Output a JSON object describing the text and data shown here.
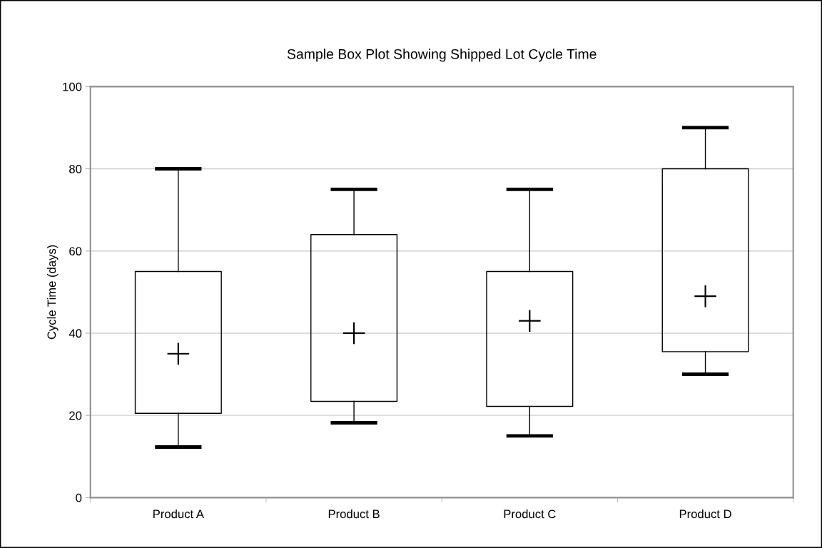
{
  "chart_data": {
    "type": "box",
    "title": "Sample Box Plot Showing Shipped Lot Cycle Time",
    "ylabel": "Cycle Time (days)",
    "categories": [
      "Product A",
      "Product B",
      "Product C",
      "Product D"
    ],
    "boxes": [
      {
        "low": 12.3,
        "q1": 20.5,
        "mean": 35,
        "q3": 55,
        "high": 80
      },
      {
        "low": 18.2,
        "q1": 23.4,
        "mean": 40,
        "q3": 64,
        "high": 75
      },
      {
        "low": 15,
        "q1": 22.2,
        "mean": 43,
        "q3": 55,
        "high": 75
      },
      {
        "low": 30,
        "q1": 35.5,
        "mean": 49,
        "q3": 80,
        "high": 90
      }
    ],
    "color": "#000000",
    "ylim": [
      0,
      100
    ],
    "yticks": [
      0,
      20,
      40,
      60,
      80,
      100
    ],
    "grid": "y",
    "marker": "cross"
  }
}
